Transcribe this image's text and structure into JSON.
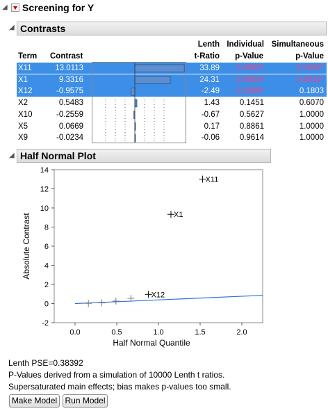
{
  "report": {
    "title": "Screening for Y"
  },
  "contrasts": {
    "title": "Contrasts",
    "headers": {
      "term": "Term",
      "contrast": "Contrast",
      "lenth_1": "Lenth",
      "lenth_2": "t-Ratio",
      "individual_1": "Individual",
      "individual_2": "p-Value",
      "simultaneous_1": "Simultaneous",
      "simultaneous_2": "p-Value"
    },
    "rows": [
      {
        "term": "X11",
        "contrast": "13.0113",
        "t_ratio": "33.89",
        "ind_p": "0.0002*",
        "sim_p": "0.0003*",
        "selected": true
      },
      {
        "term": "X1",
        "contrast": "9.3316",
        "t_ratio": "24.31",
        "ind_p": "0.0003*",
        "sim_p": "0.0011*",
        "selected": true
      },
      {
        "term": "X12",
        "contrast": "-0.9575",
        "t_ratio": "-2.49",
        "ind_p": "0.0399*",
        "sim_p": "0.1803",
        "selected": true
      },
      {
        "term": "X2",
        "contrast": "0.5483",
        "t_ratio": "1.43",
        "ind_p": "0.1451",
        "sim_p": "0.6070",
        "selected": false
      },
      {
        "term": "X10",
        "contrast": "-0.2559",
        "t_ratio": "-0.67",
        "ind_p": "0.5627",
        "sim_p": "1.0000",
        "selected": false
      },
      {
        "term": "X5",
        "contrast": "0.0669",
        "t_ratio": "0.17",
        "ind_p": "0.8861",
        "sim_p": "1.0000",
        "selected": false
      },
      {
        "term": "X9",
        "contrast": "-0.0234",
        "t_ratio": "-0.06",
        "ind_p": "0.9614",
        "sim_p": "1.0000",
        "selected": false
      }
    ]
  },
  "half_normal": {
    "title": "Half Normal Plot"
  },
  "chart_data": {
    "type": "scatter",
    "xlabel": "Half Normal Quantile",
    "ylabel": "Absolute Contrast",
    "xlim": [
      -0.25,
      2.25
    ],
    "ylim": [
      -2,
      14
    ],
    "xticks": [
      "0.0",
      "0.5",
      "1.0",
      "1.5",
      "2.0"
    ],
    "yticks": [
      "-2",
      "0",
      "2",
      "4",
      "6",
      "8",
      "10",
      "12",
      "14"
    ],
    "points": [
      {
        "x": 1.53,
        "y": 13.01,
        "label": "X11"
      },
      {
        "x": 1.15,
        "y": 9.33,
        "label": "X1"
      },
      {
        "x": 0.88,
        "y": 0.96,
        "label": "X12"
      },
      {
        "x": 0.67,
        "y": 0.55,
        "label": ""
      },
      {
        "x": 0.49,
        "y": 0.26,
        "label": ""
      },
      {
        "x": 0.32,
        "y": 0.07,
        "label": ""
      },
      {
        "x": 0.16,
        "y": 0.02,
        "label": ""
      }
    ],
    "line": {
      "x": [
        0.0,
        2.25
      ],
      "y": [
        0.0,
        0.86
      ],
      "color": "#2f6fd6"
    }
  },
  "footer": {
    "lenth_pse": "Lenth PSE=0.38392",
    "note1": "P-Values derived from a simulation of 10000 Lenth t ratios.",
    "note2": "Supersaturated main effects; bias makes p-values too small.",
    "make_model": "Make Model",
    "run_model": "Run Model"
  },
  "colors": {
    "selection": "#3d8ee6",
    "significant": "#e8176b",
    "bar_fill": "#5b8fd1"
  }
}
